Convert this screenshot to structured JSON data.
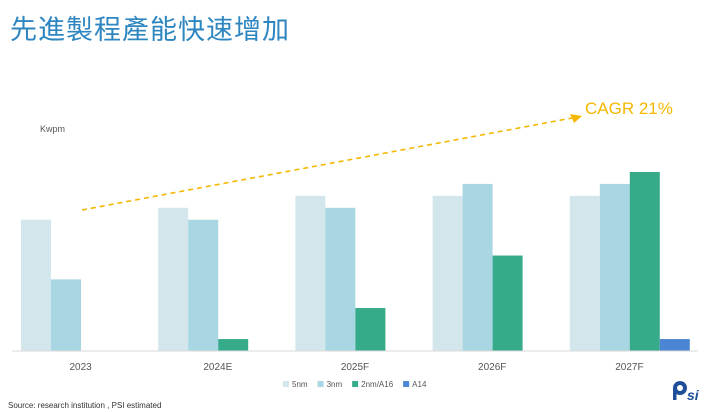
{
  "page": {
    "title": "先進製程產能快速增加",
    "source": "Source: research institution , PSI estimated",
    "logo_text": "Psi"
  },
  "colors": {
    "title": "#2e86c1",
    "cagr": "#f5b800",
    "series": [
      "#d3e6ec",
      "#a8d6e3",
      "#36ab8a",
      "#4a86d4"
    ]
  },
  "chart_data": {
    "type": "bar",
    "title": "",
    "ylabel": "Kwpm",
    "categories": [
      "2023",
      "2024E",
      "2025F",
      "2026F",
      "2027F"
    ],
    "ylim": [
      0,
      15
    ],
    "series": [
      {
        "name": "5nm",
        "values": [
          11.0,
          12.0,
          13.0,
          13.0,
          13.0
        ]
      },
      {
        "name": "3nm",
        "values": [
          6.0,
          11.0,
          12.0,
          14.0,
          14.0
        ]
      },
      {
        "name": "2nm/A16",
        "values": [
          0,
          1.0,
          3.6,
          8.0,
          15.0
        ]
      },
      {
        "name": "A14",
        "values": [
          0,
          0,
          0,
          0,
          1.0
        ]
      }
    ],
    "annotation": {
      "text": "CAGR 21%",
      "style": "dashed-arrow"
    },
    "legend_position": "bottom",
    "grid": false
  }
}
